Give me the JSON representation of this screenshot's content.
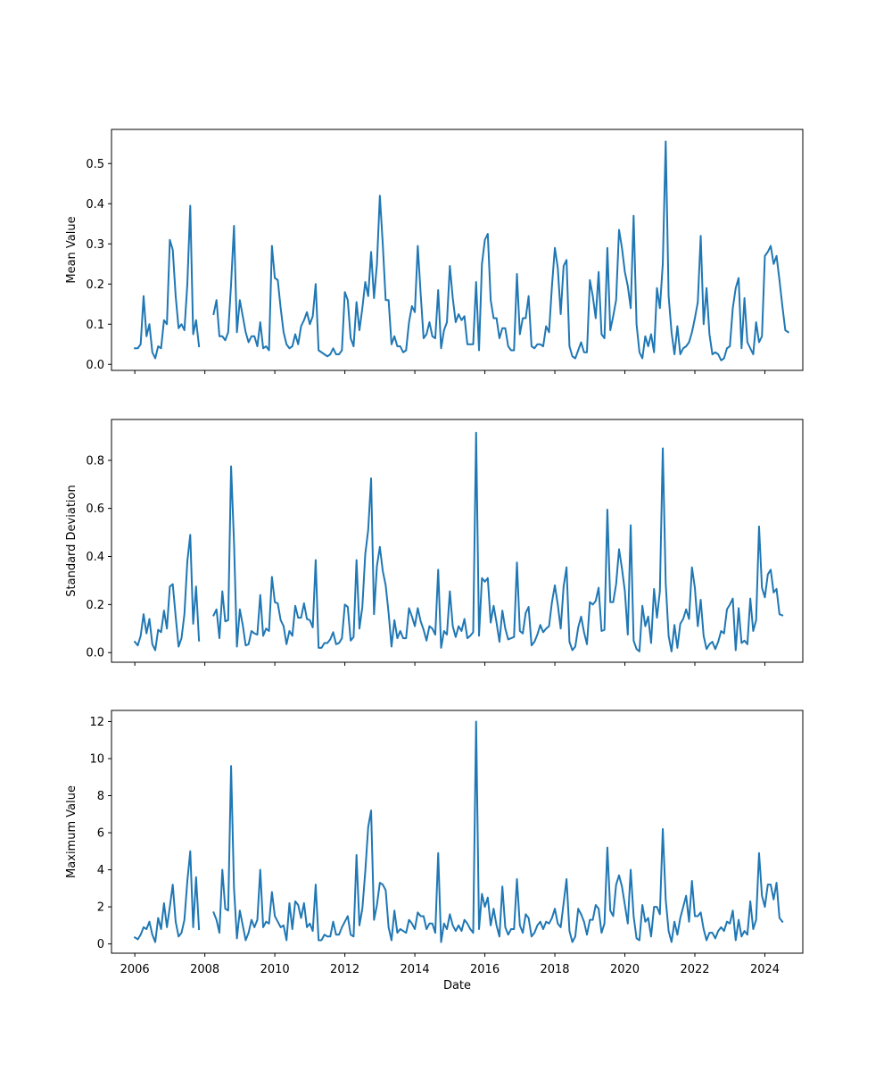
{
  "chart_data": [
    {
      "type": "line",
      "ylabel": "Mean Value",
      "xlabel": "",
      "yticks": [
        "0.0",
        "0.1",
        "0.2",
        "0.3",
        "0.4",
        "0.5"
      ],
      "ylim": [
        -0.015,
        0.585
      ],
      "xlim": [
        "2005-05-01",
        "2025-02-01"
      ],
      "line_color": "#1f77b4",
      "series": [
        {
          "segments": [
            {
              "start": "2006-01",
              "values": [
                0.04,
                0.04,
                0.05,
                0.17,
                0.07,
                0.1,
                0.03,
                0.015,
                0.045,
                0.04,
                0.11,
                0.1,
                0.31,
                0.285,
                0.17,
                0.09,
                0.1,
                0.085,
                0.2,
                0.395,
                0.075,
                0.11,
                0.045
              ]
            },
            {
              "start": "2008-04",
              "values": [
                0.125,
                0.16,
                0.07,
                0.07,
                0.06,
                0.08,
                0.2,
                0.345,
                0.08,
                0.16,
                0.12,
                0.08,
                0.055,
                0.07,
                0.07,
                0.045,
                0.105,
                0.04,
                0.045,
                0.035,
                0.295,
                0.215,
                0.21,
                0.14,
                0.08,
                0.05,
                0.04,
                0.045,
                0.075,
                0.05,
                0.095,
                0.11,
                0.13,
                0.1,
                0.12,
                0.2,
                0.035,
                0.03,
                0.025,
                0.02,
                0.025,
                0.04,
                0.025,
                0.025,
                0.035,
                0.18,
                0.16,
                0.065,
                0.045,
                0.155,
                0.085,
                0.14,
                0.205,
                0.17,
                0.28,
                0.165,
                0.25,
                0.42,
                0.3,
                0.16,
                0.16,
                0.05,
                0.07,
                0.045,
                0.045,
                0.03,
                0.035,
                0.105,
                0.145,
                0.13,
                0.295,
                0.175,
                0.065,
                0.075,
                0.105,
                0.07,
                0.065,
                0.185,
                0.04,
                0.085,
                0.105,
                0.245,
                0.165,
                0.105,
                0.125,
                0.11,
                0.12,
                0.05,
                0.05,
                0.05,
                0.205,
                0.035,
                0.25,
                0.31,
                0.325,
                0.16,
                0.115,
                0.115,
                0.065,
                0.09,
                0.09,
                0.045,
                0.035,
                0.035,
                0.225,
                0.075,
                0.115,
                0.115,
                0.17,
                0.045,
                0.04,
                0.05,
                0.05,
                0.045,
                0.095,
                0.08,
                0.195,
                0.29,
                0.24,
                0.125,
                0.245,
                0.26,
                0.045,
                0.02,
                0.015,
                0.035,
                0.055,
                0.03,
                0.03,
                0.21,
                0.17,
                0.115,
                0.23,
                0.075,
                0.065,
                0.29,
                0.085,
                0.12,
                0.16,
                0.335,
                0.29,
                0.23,
                0.195,
                0.14,
                0.37,
                0.1,
                0.03,
                0.015,
                0.07,
                0.045,
                0.075,
                0.03,
                0.19,
                0.14,
                0.25,
                0.555,
                0.17,
                0.08,
                0.025,
                0.095,
                0.025,
                0.04,
                0.045,
                0.055,
                0.08,
                0.115,
                0.155,
                0.32,
                0.1,
                0.19,
                0.075,
                0.025,
                0.03,
                0.025,
                0.01,
                0.015,
                0.04,
                0.045,
                0.14,
                0.19,
                0.215,
                0.04,
                0.165,
                0.055,
                0.04,
                0.025,
                0.105,
                0.055,
                0.07,
                0.27,
                0.28,
                0.295,
                0.25,
                0.27,
                0.21,
                0.145,
                0.085,
                0.08
              ]
            }
          ]
        }
      ]
    },
    {
      "type": "line",
      "ylabel": "Standard Deviation",
      "xlabel": "",
      "yticks": [
        "0.0",
        "0.2",
        "0.4",
        "0.6",
        "0.8"
      ],
      "ylim": [
        -0.04,
        0.97
      ],
      "xlim": [
        "2005-05-01",
        "2025-02-01"
      ],
      "line_color": "#1f77b4",
      "series": [
        {
          "segments": [
            {
              "start": "2006-01",
              "values": [
                0.045,
                0.03,
                0.07,
                0.16,
                0.08,
                0.14,
                0.035,
                0.01,
                0.095,
                0.085,
                0.175,
                0.1,
                0.275,
                0.285,
                0.15,
                0.025,
                0.06,
                0.16,
                0.38,
                0.49,
                0.12,
                0.275,
                0.05
              ]
            },
            {
              "start": "2008-04",
              "values": [
                0.155,
                0.18,
                0.06,
                0.255,
                0.13,
                0.135,
                0.775,
                0.46,
                0.025,
                0.18,
                0.115,
                0.03,
                0.035,
                0.09,
                0.08,
                0.075,
                0.24,
                0.07,
                0.1,
                0.09,
                0.315,
                0.21,
                0.205,
                0.135,
                0.11,
                0.035,
                0.09,
                0.07,
                0.195,
                0.145,
                0.145,
                0.205,
                0.14,
                0.135,
                0.105,
                0.385,
                0.02,
                0.02,
                0.04,
                0.04,
                0.055,
                0.085,
                0.035,
                0.04,
                0.06,
                0.2,
                0.19,
                0.05,
                0.065,
                0.385,
                0.1,
                0.19,
                0.41,
                0.51,
                0.725,
                0.16,
                0.36,
                0.44,
                0.34,
                0.28,
                0.165,
                0.025,
                0.135,
                0.06,
                0.09,
                0.06,
                0.06,
                0.185,
                0.15,
                0.11,
                0.185,
                0.13,
                0.095,
                0.05,
                0.11,
                0.1,
                0.075,
                0.345,
                0.02,
                0.09,
                0.075,
                0.255,
                0.11,
                0.065,
                0.11,
                0.09,
                0.14,
                0.06,
                0.07,
                0.085,
                0.915,
                0.07,
                0.31,
                0.295,
                0.31,
                0.125,
                0.195,
                0.125,
                0.045,
                0.175,
                0.1,
                0.055,
                0.06,
                0.065,
                0.375,
                0.09,
                0.08,
                0.165,
                0.19,
                0.03,
                0.045,
                0.075,
                0.115,
                0.085,
                0.1,
                0.11,
                0.21,
                0.28,
                0.2,
                0.1,
                0.275,
                0.355,
                0.045,
                0.01,
                0.025,
                0.105,
                0.15,
                0.085,
                0.035,
                0.21,
                0.2,
                0.215,
                0.27,
                0.09,
                0.095,
                0.595,
                0.21,
                0.21,
                0.285,
                0.43,
                0.35,
                0.255,
                0.075,
                0.53,
                0.05,
                0.015,
                0.005,
                0.195,
                0.11,
                0.15,
                0.04,
                0.265,
                0.145,
                0.255,
                0.85,
                0.29,
                0.07,
                0.005,
                0.115,
                0.02,
                0.12,
                0.14,
                0.18,
                0.14,
                0.355,
                0.27,
                0.11,
                0.22,
                0.07,
                0.015,
                0.035,
                0.045,
                0.015,
                0.045,
                0.09,
                0.08,
                0.18,
                0.2,
                0.225,
                0.01,
                0.185,
                0.04,
                0.05,
                0.035,
                0.225,
                0.09,
                0.135,
                0.525,
                0.27,
                0.23,
                0.325,
                0.345,
                0.25,
                0.265,
                0.16,
                0.155
              ]
            }
          ]
        }
      ]
    },
    {
      "type": "line",
      "ylabel": "Maximum Value",
      "xlabel": "Date",
      "yticks": [
        "0",
        "2",
        "4",
        "6",
        "8",
        "10",
        "12"
      ],
      "ylim": [
        -0.5,
        12.6
      ],
      "xlim": [
        "2005-05-01",
        "2025-02-01"
      ],
      "xticks": [
        "2006",
        "2008",
        "2010",
        "2012",
        "2014",
        "2016",
        "2018",
        "2020",
        "2022",
        "2024"
      ],
      "line_color": "#1f77b4",
      "series": [
        {
          "segments": [
            {
              "start": "2006-01",
              "values": [
                0.35,
                0.25,
                0.5,
                0.9,
                0.8,
                1.2,
                0.5,
                0.1,
                1.4,
                0.8,
                2.2,
                0.9,
                2.0,
                3.2,
                1.2,
                0.4,
                0.6,
                1.3,
                3.4,
                5.0,
                0.9,
                3.6,
                0.8
              ]
            },
            {
              "start": "2008-04",
              "values": [
                1.7,
                1.3,
                0.6,
                4.0,
                1.9,
                1.8,
                9.6,
                3.0,
                0.3,
                1.8,
                1.0,
                0.2,
                0.6,
                1.3,
                0.9,
                1.3,
                4.0,
                0.9,
                1.2,
                1.1,
                2.8,
                1.5,
                1.2,
                0.9,
                1.0,
                0.2,
                2.2,
                0.8,
                2.3,
                2.1,
                1.4,
                2.2,
                0.9,
                1.1,
                0.7,
                3.2,
                0.2,
                0.2,
                0.5,
                0.4,
                0.4,
                1.2,
                0.5,
                0.5,
                0.9,
                1.2,
                1.5,
                0.5,
                0.4,
                4.8,
                1.0,
                1.9,
                3.9,
                6.3,
                7.2,
                1.3,
                2.1,
                3.3,
                3.2,
                2.9,
                0.9,
                0.2,
                1.8,
                0.6,
                0.8,
                0.7,
                0.6,
                1.3,
                1.1,
                0.8,
                1.7,
                1.5,
                1.5,
                0.8,
                1.1,
                1.1,
                0.6,
                4.9,
                0.1,
                1.1,
                0.8,
                1.6,
                1.0,
                0.7,
                1.0,
                0.7,
                1.3,
                1.1,
                0.8,
                0.6,
                12.0,
                0.8,
                2.7,
                2.0,
                2.5,
                1.0,
                1.9,
                1.0,
                0.4,
                3.1,
                0.9,
                0.5,
                0.8,
                0.8,
                3.5,
                1.0,
                0.6,
                1.6,
                1.4,
                0.4,
                0.6,
                1.0,
                1.2,
                0.8,
                1.2,
                1.1,
                1.4,
                1.9,
                1.1,
                0.9,
                2.2,
                3.5,
                0.7,
                0.1,
                0.4,
                1.9,
                1.6,
                1.2,
                0.5,
                1.3,
                1.3,
                2.1,
                1.9,
                0.6,
                1.1,
                5.2,
                1.8,
                1.5,
                3.2,
                3.7,
                3.1,
                2.1,
                1.1,
                4.0,
                1.5,
                0.3,
                0.2,
                2.1,
                1.2,
                1.4,
                0.4,
                2.0,
                2.0,
                1.6,
                6.2,
                2.4,
                0.7,
                0.1,
                1.2,
                0.5,
                1.4,
                2.0,
                2.6,
                1.2,
                3.4,
                1.5,
                1.5,
                1.7,
                0.8,
                0.2,
                0.6,
                0.6,
                0.3,
                0.7,
                0.9,
                0.7,
                1.2,
                1.1,
                1.8,
                0.2,
                1.3,
                0.4,
                0.7,
                0.5,
                2.3,
                0.8,
                1.3,
                4.9,
                2.6,
                2.0,
                3.2,
                3.2,
                2.4,
                3.3,
                1.4,
                1.2
              ]
            }
          ]
        }
      ]
    }
  ]
}
